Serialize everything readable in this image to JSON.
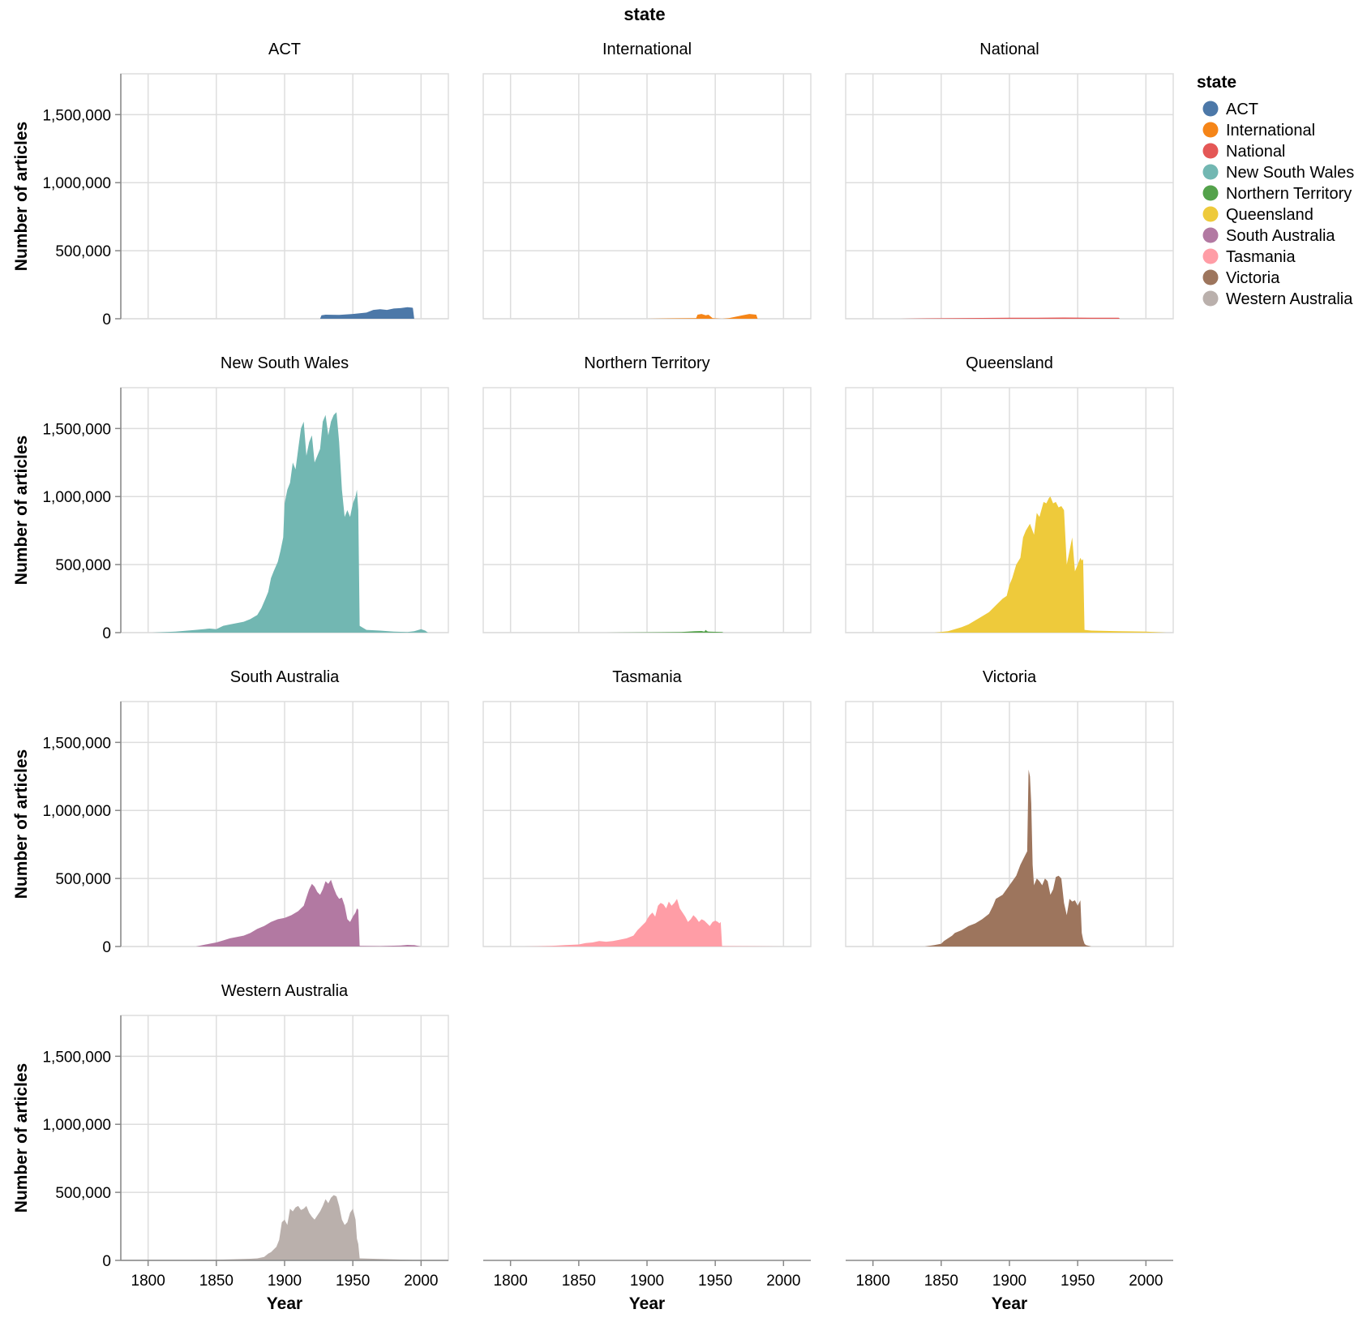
{
  "chart_data": {
    "type": "area",
    "facet_title": "state",
    "xlabel": "Year",
    "ylabel": "Number of articles",
    "xlim": [
      1780,
      2020
    ],
    "ylim": [
      0,
      1800000
    ],
    "x_ticks": [
      1800,
      1850,
      1900,
      1950,
      2000
    ],
    "y_ticks": [
      0,
      500000,
      1000000,
      1500000
    ],
    "y_tick_labels": [
      "0",
      "500,000",
      "1,000,000",
      "1,500,000"
    ],
    "grid": true,
    "legend": {
      "title": "state",
      "placement": "right"
    },
    "series": [
      {
        "name": "ACT",
        "color": "#4c78a8",
        "x": [
          1926,
          1927,
          1930,
          1940,
          1950,
          1955,
          1960,
          1965,
          1970,
          1975,
          1980,
          1985,
          1990,
          1993,
          1994,
          1995
        ],
        "values": [
          0,
          25000,
          30000,
          28000,
          35000,
          40000,
          45000,
          65000,
          70000,
          65000,
          75000,
          78000,
          85000,
          82000,
          80000,
          0
        ]
      },
      {
        "name": "International",
        "color": "#f58518",
        "x": [
          1900,
          1920,
          1936,
          1937,
          1940,
          1943,
          1945,
          1948,
          1950,
          1955,
          1960,
          1970,
          1975,
          1980,
          1981
        ],
        "values": [
          0,
          3000,
          5000,
          30000,
          35000,
          25000,
          30000,
          5000,
          3000,
          0,
          5000,
          25000,
          35000,
          30000,
          0
        ]
      },
      {
        "name": "National",
        "color": "#e45756",
        "x": [
          1820,
          1840,
          1860,
          1880,
          1900,
          1920,
          1940,
          1960,
          1980,
          1981
        ],
        "values": [
          0,
          3000,
          4000,
          6000,
          7000,
          8000,
          9000,
          8000,
          7000,
          0
        ]
      },
      {
        "name": "New South Wales",
        "color": "#72b7b2",
        "x": [
          1803,
          1820,
          1835,
          1845,
          1850,
          1855,
          1860,
          1865,
          1870,
          1875,
          1880,
          1883,
          1886,
          1888,
          1890,
          1892,
          1895,
          1897,
          1899,
          1900,
          1902,
          1904,
          1906,
          1908,
          1910,
          1912,
          1914,
          1916,
          1918,
          1920,
          1922,
          1924,
          1926,
          1928,
          1930,
          1932,
          1934,
          1936,
          1938,
          1940,
          1942,
          1944,
          1946,
          1948,
          1950,
          1952,
          1953,
          1954,
          1955,
          1960,
          1970,
          1980,
          1990,
          1995,
          2000,
          2003,
          2005
        ],
        "values": [
          0,
          8000,
          20000,
          30000,
          25000,
          50000,
          60000,
          70000,
          80000,
          100000,
          130000,
          180000,
          250000,
          300000,
          400000,
          450000,
          520000,
          600000,
          700000,
          950000,
          1050000,
          1100000,
          1250000,
          1200000,
          1350000,
          1500000,
          1550000,
          1300000,
          1400000,
          1450000,
          1250000,
          1300000,
          1350000,
          1550000,
          1600000,
          1450000,
          1550000,
          1600000,
          1620000,
          1400000,
          1050000,
          850000,
          900000,
          850000,
          950000,
          1000000,
          1050000,
          900000,
          50000,
          20000,
          15000,
          8000,
          5000,
          10000,
          25000,
          15000,
          0
        ]
      },
      {
        "name": "Northern Territory",
        "color": "#54a24b",
        "x": [
          1870,
          1890,
          1910,
          1925,
          1930,
          1935,
          1940,
          1942,
          1943,
          1944,
          1945,
          1950,
          1955,
          1956
        ],
        "values": [
          0,
          2000,
          3000,
          5000,
          8000,
          10000,
          12000,
          8000,
          20000,
          10000,
          8000,
          6000,
          4000,
          0
        ]
      },
      {
        "name": "Queensland",
        "color": "#eeca3b",
        "x": [
          1845,
          1855,
          1860,
          1865,
          1870,
          1875,
          1880,
          1885,
          1890,
          1895,
          1898,
          1900,
          1902,
          1905,
          1908,
          1910,
          1912,
          1915,
          1918,
          1920,
          1922,
          1925,
          1927,
          1929,
          1930,
          1932,
          1934,
          1936,
          1938,
          1940,
          1942,
          1944,
          1946,
          1948,
          1950,
          1952,
          1953,
          1954,
          1955,
          1960,
          1980,
          2000,
          2015
        ],
        "values": [
          0,
          10000,
          25000,
          40000,
          60000,
          90000,
          120000,
          150000,
          200000,
          250000,
          270000,
          350000,
          400000,
          500000,
          550000,
          700000,
          750000,
          800000,
          720000,
          880000,
          850000,
          960000,
          950000,
          990000,
          1000000,
          950000,
          960000,
          920000,
          930000,
          900000,
          500000,
          600000,
          700000,
          450000,
          500000,
          550000,
          530000,
          540000,
          20000,
          15000,
          10000,
          8000,
          0
        ]
      },
      {
        "name": "South Australia",
        "color": "#b279a2",
        "x": [
          1835,
          1840,
          1845,
          1850,
          1855,
          1860,
          1865,
          1870,
          1875,
          1880,
          1885,
          1890,
          1895,
          1900,
          1905,
          1910,
          1912,
          1914,
          1916,
          1918,
          1920,
          1922,
          1924,
          1926,
          1928,
          1930,
          1932,
          1934,
          1936,
          1938,
          1940,
          1942,
          1944,
          1946,
          1948,
          1950,
          1952,
          1953,
          1954,
          1955,
          1970,
          1985,
          1990,
          1995,
          2000
        ],
        "values": [
          0,
          10000,
          20000,
          30000,
          45000,
          60000,
          70000,
          80000,
          100000,
          130000,
          150000,
          180000,
          200000,
          210000,
          230000,
          260000,
          280000,
          300000,
          360000,
          420000,
          460000,
          440000,
          400000,
          380000,
          420000,
          480000,
          460000,
          490000,
          430000,
          380000,
          350000,
          360000,
          300000,
          200000,
          180000,
          220000,
          250000,
          280000,
          270000,
          5000,
          3000,
          8000,
          12000,
          10000,
          0
        ]
      },
      {
        "name": "Tasmania",
        "color": "#ff9da6",
        "x": [
          1810,
          1820,
          1830,
          1840,
          1850,
          1855,
          1860,
          1865,
          1870,
          1875,
          1880,
          1885,
          1890,
          1893,
          1896,
          1899,
          1900,
          1902,
          1904,
          1906,
          1908,
          1910,
          1912,
          1914,
          1916,
          1918,
          1920,
          1922,
          1924,
          1926,
          1928,
          1930,
          1932,
          1934,
          1936,
          1938,
          1940,
          1942,
          1944,
          1946,
          1948,
          1950,
          1952,
          1953,
          1954,
          1955,
          1980,
          2000
        ],
        "values": [
          0,
          2000,
          5000,
          10000,
          15000,
          25000,
          30000,
          40000,
          35000,
          40000,
          50000,
          60000,
          80000,
          120000,
          150000,
          180000,
          200000,
          230000,
          250000,
          220000,
          300000,
          320000,
          310000,
          280000,
          330000,
          300000,
          320000,
          350000,
          280000,
          250000,
          220000,
          180000,
          200000,
          230000,
          210000,
          180000,
          200000,
          190000,
          170000,
          150000,
          180000,
          190000,
          180000,
          170000,
          180000,
          3000,
          2000,
          0
        ]
      },
      {
        "name": "Victoria",
        "color": "#9d755d",
        "x": [
          1838,
          1845,
          1850,
          1852,
          1855,
          1858,
          1860,
          1865,
          1870,
          1875,
          1880,
          1885,
          1888,
          1890,
          1895,
          1900,
          1905,
          1908,
          1910,
          1912,
          1913,
          1914,
          1915,
          1916,
          1917,
          1918,
          1920,
          1922,
          1924,
          1926,
          1928,
          1930,
          1932,
          1934,
          1936,
          1938,
          1940,
          1942,
          1944,
          1946,
          1948,
          1950,
          1952,
          1953,
          1954,
          1955,
          1956,
          1960
        ],
        "values": [
          0,
          10000,
          20000,
          40000,
          60000,
          80000,
          100000,
          120000,
          150000,
          170000,
          200000,
          240000,
          300000,
          350000,
          380000,
          450000,
          520000,
          600000,
          640000,
          680000,
          700000,
          1300000,
          1250000,
          1050000,
          600000,
          450000,
          500000,
          480000,
          450000,
          500000,
          480000,
          380000,
          420000,
          510000,
          520000,
          500000,
          320000,
          230000,
          350000,
          330000,
          340000,
          300000,
          340000,
          100000,
          50000,
          20000,
          10000,
          0
        ]
      },
      {
        "name": "Western Australia",
        "color": "#bab0ac",
        "x": [
          1780,
          1830,
          1850,
          1860,
          1870,
          1875,
          1880,
          1885,
          1888,
          1890,
          1892,
          1894,
          1896,
          1898,
          1900,
          1902,
          1904,
          1906,
          1908,
          1910,
          1912,
          1914,
          1916,
          1918,
          1920,
          1922,
          1924,
          1926,
          1928,
          1930,
          1932,
          1934,
          1936,
          1938,
          1940,
          1942,
          1944,
          1946,
          1948,
          1950,
          1952,
          1953,
          1954,
          1955,
          1970,
          1990,
          2000
        ],
        "values": [
          0,
          3000,
          5000,
          8000,
          10000,
          12000,
          15000,
          25000,
          50000,
          60000,
          80000,
          100000,
          150000,
          280000,
          300000,
          260000,
          380000,
          360000,
          390000,
          400000,
          370000,
          380000,
          400000,
          350000,
          320000,
          300000,
          330000,
          360000,
          400000,
          450000,
          420000,
          460000,
          480000,
          470000,
          400000,
          300000,
          260000,
          280000,
          350000,
          380000,
          300000,
          160000,
          120000,
          15000,
          10000,
          5000,
          0
        ]
      }
    ]
  }
}
